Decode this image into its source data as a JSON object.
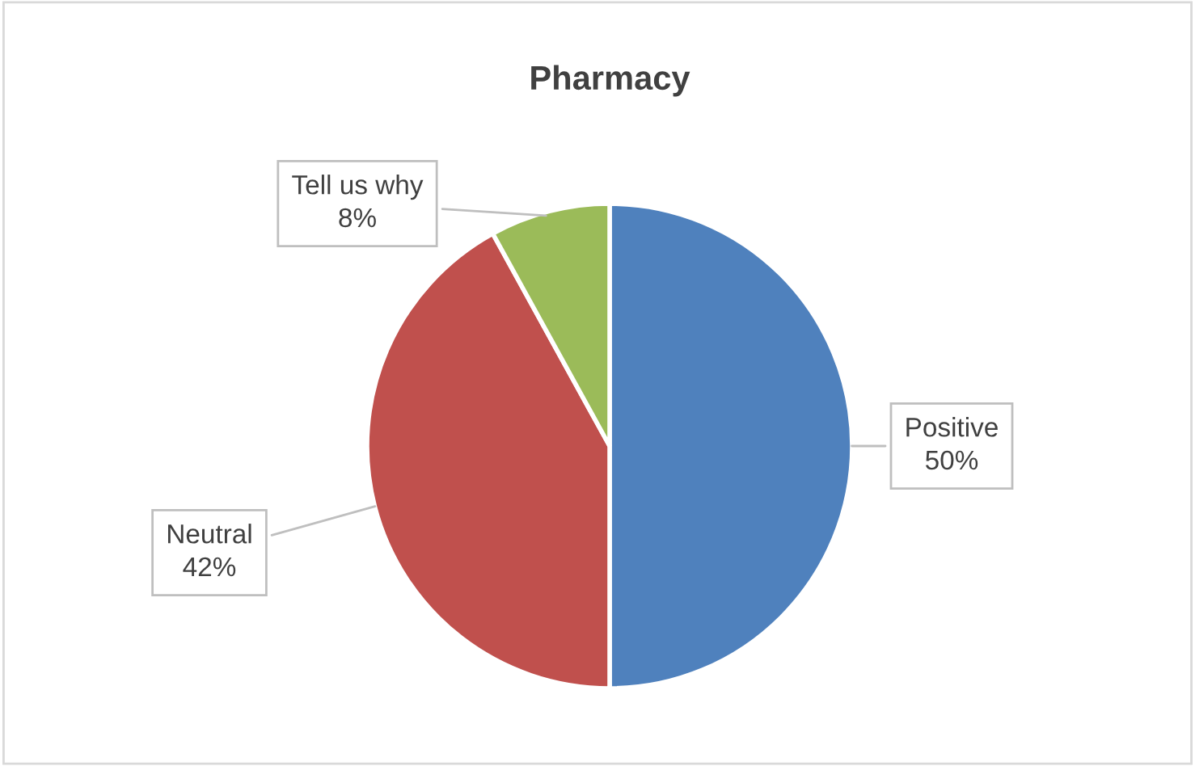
{
  "chart_data": {
    "type": "pie",
    "title": "Pharmacy",
    "categories": [
      "Positive",
      "Neutral",
      "Tell us why"
    ],
    "values": [
      50,
      42,
      8
    ],
    "value_labels": [
      "50%",
      "42%",
      "8%"
    ],
    "colors": [
      "#4f81bd",
      "#c0504d",
      "#9bbb59"
    ],
    "legend": false
  }
}
